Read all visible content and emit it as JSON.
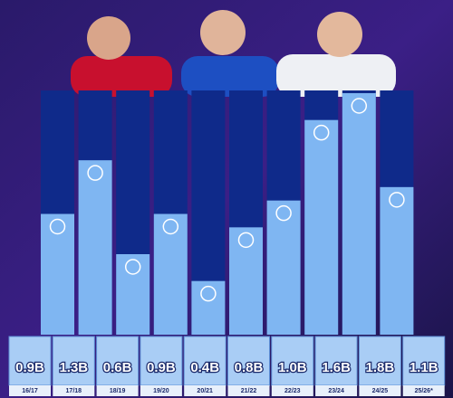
{
  "chart_data": {
    "type": "bar",
    "categories": [
      "16/17",
      "17/18",
      "18/19",
      "19/20",
      "20/21",
      "21/22",
      "22/23",
      "23/24",
      "24/25",
      "25/26*"
    ],
    "values": [
      0.9,
      1.3,
      0.6,
      0.9,
      0.4,
      0.8,
      1.0,
      1.6,
      1.8,
      1.1
    ],
    "value_labels": [
      "0.9B",
      "1.3B",
      "0.6B",
      "0.9B",
      "0.4B",
      "0.8B",
      "1.0B",
      "1.6B",
      "1.8B",
      "1.1B"
    ],
    "color": "#7fb6f2"
  }
}
